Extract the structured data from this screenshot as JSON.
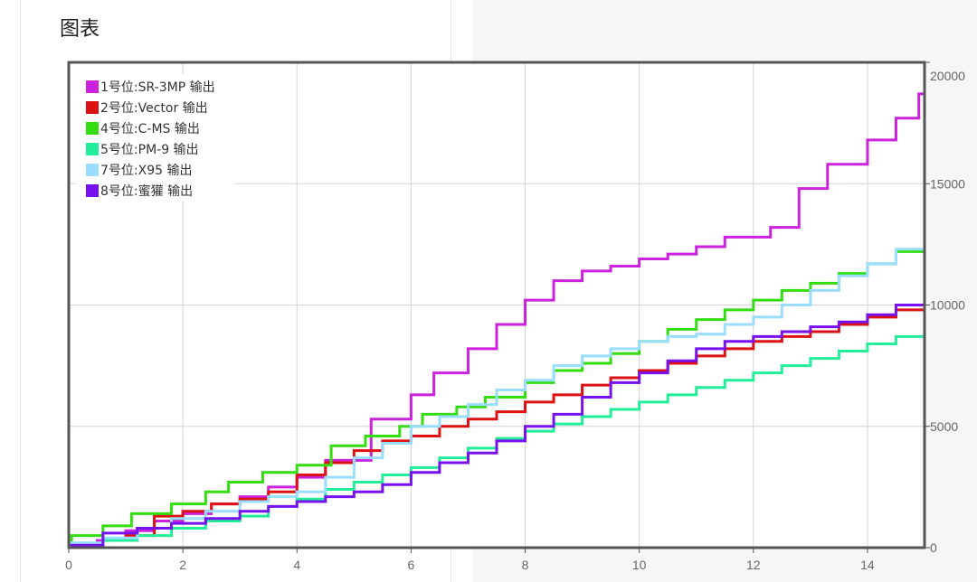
{
  "panel": {
    "title": "图表"
  },
  "chart_data": {
    "type": "line",
    "step": true,
    "xlim": [
      0,
      15
    ],
    "ylim": [
      0,
      20000
    ],
    "x_ticks": [
      "0",
      "2",
      "4",
      "6",
      "8",
      "10",
      "12",
      "14"
    ],
    "y_ticks": [
      "0",
      "5000",
      "10000",
      "15000",
      "20000"
    ],
    "grid": true,
    "y_axis_side": "right",
    "legend_position": "top-left",
    "series": [
      {
        "name": "1号位:SR-3MP 输出",
        "color": "#cc22dd",
        "points": [
          [
            0,
            0
          ],
          [
            0.05,
            150
          ],
          [
            0.5,
            300
          ],
          [
            1,
            700
          ],
          [
            1.5,
            1100
          ],
          [
            2,
            1400
          ],
          [
            2.5,
            1800
          ],
          [
            3,
            2100
          ],
          [
            3.5,
            2500
          ],
          [
            4,
            2900
          ],
          [
            4.5,
            3600
          ],
          [
            5.3,
            5300
          ],
          [
            6,
            6300
          ],
          [
            6.4,
            7200
          ],
          [
            7,
            8200
          ],
          [
            7.5,
            9200
          ],
          [
            8,
            10200
          ],
          [
            8.5,
            11000
          ],
          [
            9,
            11400
          ],
          [
            9.5,
            11600
          ],
          [
            10,
            11900
          ],
          [
            10.5,
            12100
          ],
          [
            11,
            12400
          ],
          [
            11.5,
            12800
          ],
          [
            12.3,
            13200
          ],
          [
            12.8,
            14800
          ],
          [
            13.3,
            15800
          ],
          [
            14,
            16800
          ],
          [
            14.5,
            17700
          ],
          [
            14.9,
            18700
          ],
          [
            15,
            18700
          ]
        ]
      },
      {
        "name": "2号位:Vector 输出",
        "color": "#dd1111",
        "points": [
          [
            0,
            0
          ],
          [
            0.05,
            150
          ],
          [
            0.6,
            300
          ],
          [
            1,
            500
          ],
          [
            1.5,
            1300
          ],
          [
            2,
            1500
          ],
          [
            2.5,
            1800
          ],
          [
            3,
            2000
          ],
          [
            3.5,
            2300
          ],
          [
            4,
            3000
          ],
          [
            4.5,
            3500
          ],
          [
            5,
            4000
          ],
          [
            5.5,
            4400
          ],
          [
            6,
            4600
          ],
          [
            6.5,
            5000
          ],
          [
            7,
            5300
          ],
          [
            7.5,
            5600
          ],
          [
            8,
            6000
          ],
          [
            8.5,
            6300
          ],
          [
            9,
            6700
          ],
          [
            9.5,
            7000
          ],
          [
            10,
            7300
          ],
          [
            10.5,
            7600
          ],
          [
            11,
            7900
          ],
          [
            11.5,
            8200
          ],
          [
            12,
            8500
          ],
          [
            12.5,
            8700
          ],
          [
            13,
            8900
          ],
          [
            13.5,
            9200
          ],
          [
            14,
            9500
          ],
          [
            14.5,
            9800
          ],
          [
            15,
            10000
          ]
        ]
      },
      {
        "name": "4号位:C-MS 输出",
        "color": "#33dd11",
        "points": [
          [
            0,
            0
          ],
          [
            0.05,
            500
          ],
          [
            0.6,
            900
          ],
          [
            1.1,
            1400
          ],
          [
            1.8,
            1800
          ],
          [
            2.4,
            2300
          ],
          [
            2.8,
            2700
          ],
          [
            3.4,
            3100
          ],
          [
            4,
            3400
          ],
          [
            4.6,
            4200
          ],
          [
            5.2,
            4600
          ],
          [
            5.8,
            5000
          ],
          [
            6.2,
            5500
          ],
          [
            6.8,
            5800
          ],
          [
            7.3,
            6200
          ],
          [
            8,
            6800
          ],
          [
            8.5,
            7300
          ],
          [
            9,
            7600
          ],
          [
            9.5,
            8000
          ],
          [
            10,
            8500
          ],
          [
            10.5,
            9000
          ],
          [
            11,
            9400
          ],
          [
            11.5,
            9800
          ],
          [
            12,
            10200
          ],
          [
            12.5,
            10600
          ],
          [
            13,
            10900
          ],
          [
            13.5,
            11300
          ],
          [
            14,
            11700
          ],
          [
            14.5,
            12200
          ],
          [
            15,
            12500
          ]
        ]
      },
      {
        "name": "5号位:PM-9 输出",
        "color": "#22ee99",
        "points": [
          [
            0,
            0
          ],
          [
            0.05,
            100
          ],
          [
            0.6,
            300
          ],
          [
            1.2,
            500
          ],
          [
            1.8,
            800
          ],
          [
            2.4,
            1100
          ],
          [
            3,
            1300
          ],
          [
            3.5,
            1700
          ],
          [
            4,
            2000
          ],
          [
            4.5,
            2400
          ],
          [
            5,
            2700
          ],
          [
            5.5,
            3000
          ],
          [
            6,
            3300
          ],
          [
            6.5,
            3700
          ],
          [
            7,
            4100
          ],
          [
            7.5,
            4500
          ],
          [
            8,
            4800
          ],
          [
            8.5,
            5100
          ],
          [
            9,
            5400
          ],
          [
            9.5,
            5700
          ],
          [
            10,
            6000
          ],
          [
            10.5,
            6300
          ],
          [
            11,
            6600
          ],
          [
            11.5,
            6900
          ],
          [
            12,
            7200
          ],
          [
            12.5,
            7500
          ],
          [
            13,
            7800
          ],
          [
            13.5,
            8100
          ],
          [
            14,
            8400
          ],
          [
            14.5,
            8700
          ],
          [
            15,
            9100
          ]
        ]
      },
      {
        "name": "7号位:X95 输出",
        "color": "#99ddff",
        "points": [
          [
            0,
            0
          ],
          [
            0.05,
            200
          ],
          [
            0.6,
            400
          ],
          [
            1.2,
            800
          ],
          [
            1.8,
            1200
          ],
          [
            2.4,
            1500
          ],
          [
            3,
            1900
          ],
          [
            3.5,
            2100
          ],
          [
            4,
            2300
          ],
          [
            4.5,
            2900
          ],
          [
            5,
            3700
          ],
          [
            5.5,
            4300
          ],
          [
            6,
            5000
          ],
          [
            6.5,
            5400
          ],
          [
            7,
            5900
          ],
          [
            7.5,
            6500
          ],
          [
            8,
            6900
          ],
          [
            8.5,
            7500
          ],
          [
            9,
            7900
          ],
          [
            9.5,
            8200
          ],
          [
            10,
            8500
          ],
          [
            10.5,
            8700
          ],
          [
            11,
            8800
          ],
          [
            11.5,
            9200
          ],
          [
            12,
            9500
          ],
          [
            12.5,
            10000
          ],
          [
            13,
            10600
          ],
          [
            13.5,
            11200
          ],
          [
            14,
            11700
          ],
          [
            14.5,
            12300
          ],
          [
            15,
            13000
          ]
        ]
      },
      {
        "name": "8号位:蜜獾 输出",
        "color": "#7711ee",
        "points": [
          [
            0,
            0
          ],
          [
            0.05,
            100
          ],
          [
            0.6,
            600
          ],
          [
            1.2,
            800
          ],
          [
            1.8,
            1000
          ],
          [
            2.4,
            1200
          ],
          [
            3,
            1500
          ],
          [
            3.5,
            1700
          ],
          [
            4,
            1900
          ],
          [
            4.5,
            2100
          ],
          [
            5,
            2300
          ],
          [
            5.5,
            2600
          ],
          [
            6,
            3100
          ],
          [
            6.5,
            3500
          ],
          [
            7,
            3900
          ],
          [
            7.5,
            4400
          ],
          [
            8,
            5000
          ],
          [
            8.5,
            5500
          ],
          [
            9,
            6200
          ],
          [
            9.5,
            6800
          ],
          [
            10,
            7200
          ],
          [
            10.5,
            7700
          ],
          [
            11,
            8200
          ],
          [
            11.5,
            8500
          ],
          [
            12,
            8700
          ],
          [
            12.5,
            8900
          ],
          [
            13,
            9100
          ],
          [
            13.5,
            9300
          ],
          [
            14,
            9600
          ],
          [
            14.5,
            10000
          ],
          [
            15,
            10200
          ]
        ]
      }
    ]
  }
}
